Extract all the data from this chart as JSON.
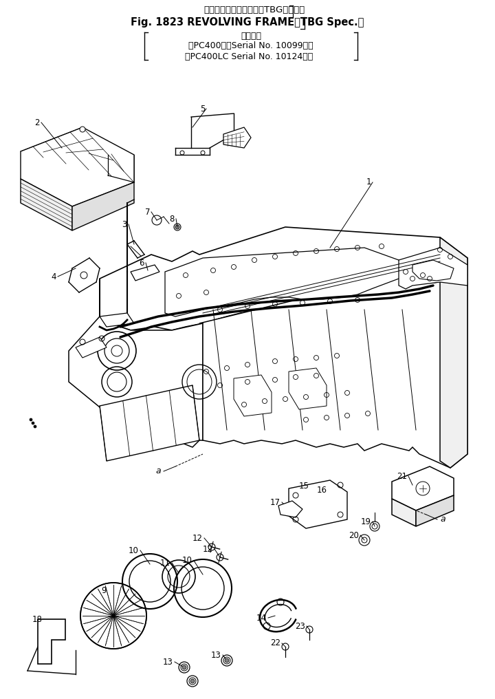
{
  "title_line1": "レボルビングフレーム（TBG仕　様）",
  "title_line2": "Fig. 1823 REVOLVING FRAME（TBG Spec.）",
  "title_line3": "適用号機",
  "title_line4": "（PC400　　Serial No. 10099～）",
  "title_line5": "（PC400LC Serial No. 10124～）",
  "bg_color": "#ffffff"
}
